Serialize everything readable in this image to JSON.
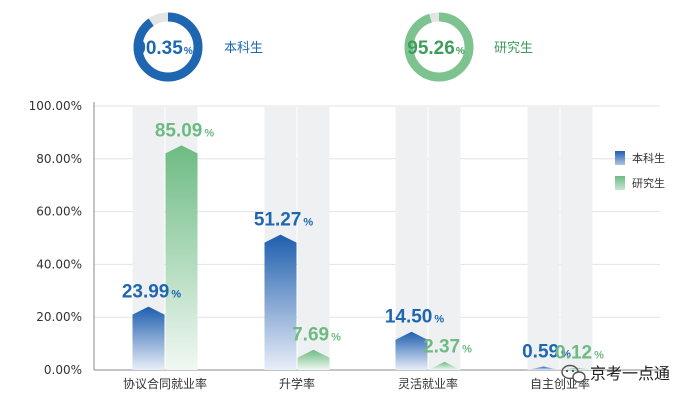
{
  "summary": [
    {
      "value": "90.35",
      "unit": "%",
      "label": "本科生",
      "fraction": 0.9035,
      "color": "#1e67b0",
      "text_color": "#1e67b0"
    },
    {
      "value": "95.26",
      "unit": "%",
      "label": "研究生",
      "fraction": 0.9526,
      "color": "#7dc38f",
      "text_color": "#3f9d5b"
    }
  ],
  "chart_data": {
    "type": "bar",
    "categories": [
      "协议合同就业率",
      "升学率",
      "灵活就业率",
      "自主创业率"
    ],
    "series": [
      {
        "name": "本科生",
        "values": [
          23.99,
          51.27,
          14.5,
          0.59
        ],
        "labels": [
          "23.99",
          "51.27",
          "14.50",
          "0.59"
        ],
        "color": "#1e67b0",
        "label_color": "#1e67b0"
      },
      {
        "name": "研究生",
        "values": [
          85.09,
          7.69,
          2.37,
          0.12
        ],
        "labels": [
          "85.09",
          "7.69",
          "2.37",
          "0.12"
        ],
        "color": "#7dc38f",
        "label_color": "#6dbb83"
      }
    ],
    "value_unit": "%",
    "ylim": [
      0,
      100
    ],
    "yticks": [
      "0.00%",
      "20.00%",
      "40.00%",
      "60.00%",
      "80.00%",
      "100.00%"
    ],
    "grid": true,
    "legend_position": "right"
  },
  "watermark": {
    "icon": "wechat-icon",
    "text": "京考一点通"
  }
}
